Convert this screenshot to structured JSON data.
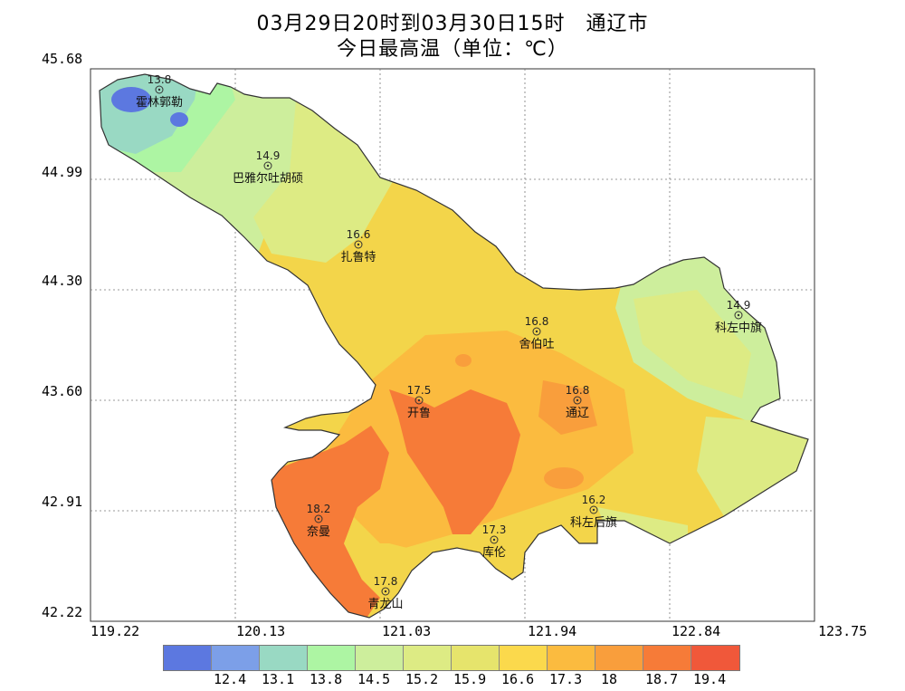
{
  "title": "03月29日20时到03月30日15时　通辽市",
  "subtitle": "今日最高温（单位：℃）",
  "axes": {
    "lat_ticks": [
      "45.68",
      "44.99",
      "44.30",
      "43.60",
      "42.91",
      "42.22"
    ],
    "lon_ticks": [
      "119.22",
      "120.13",
      "121.03",
      "121.94",
      "122.84",
      "123.75"
    ]
  },
  "stations": [
    {
      "name": "霍林郭勒",
      "value": "13.8"
    },
    {
      "name": "巴雅尔吐胡硕",
      "value": "14.9"
    },
    {
      "name": "扎鲁特",
      "value": "16.6"
    },
    {
      "name": "科左中旗",
      "value": "14.9"
    },
    {
      "name": "舍伯吐",
      "value": "16.8"
    },
    {
      "name": "开鲁",
      "value": "17.5"
    },
    {
      "name": "通辽",
      "value": "16.8"
    },
    {
      "name": "奈曼",
      "value": "18.2"
    },
    {
      "name": "库伦",
      "value": "17.3"
    },
    {
      "name": "科左后旗",
      "value": "16.2"
    },
    {
      "name": "青龙山",
      "value": "17.8"
    }
  ],
  "legend": {
    "colors": [
      "#5c78e0",
      "#7c9fe8",
      "#99d9c3",
      "#adf5a3",
      "#cdee9c",
      "#ddeb84",
      "#e6e46c",
      "#fbd94c",
      "#fbbb3f",
      "#f99e3c",
      "#f67b38",
      "#f0583a"
    ],
    "labels": [
      "12.4",
      "13.1",
      "13.8",
      "14.5",
      "15.2",
      "15.9",
      "16.6",
      "17.3",
      "18",
      "18.7",
      "19.4"
    ]
  }
}
